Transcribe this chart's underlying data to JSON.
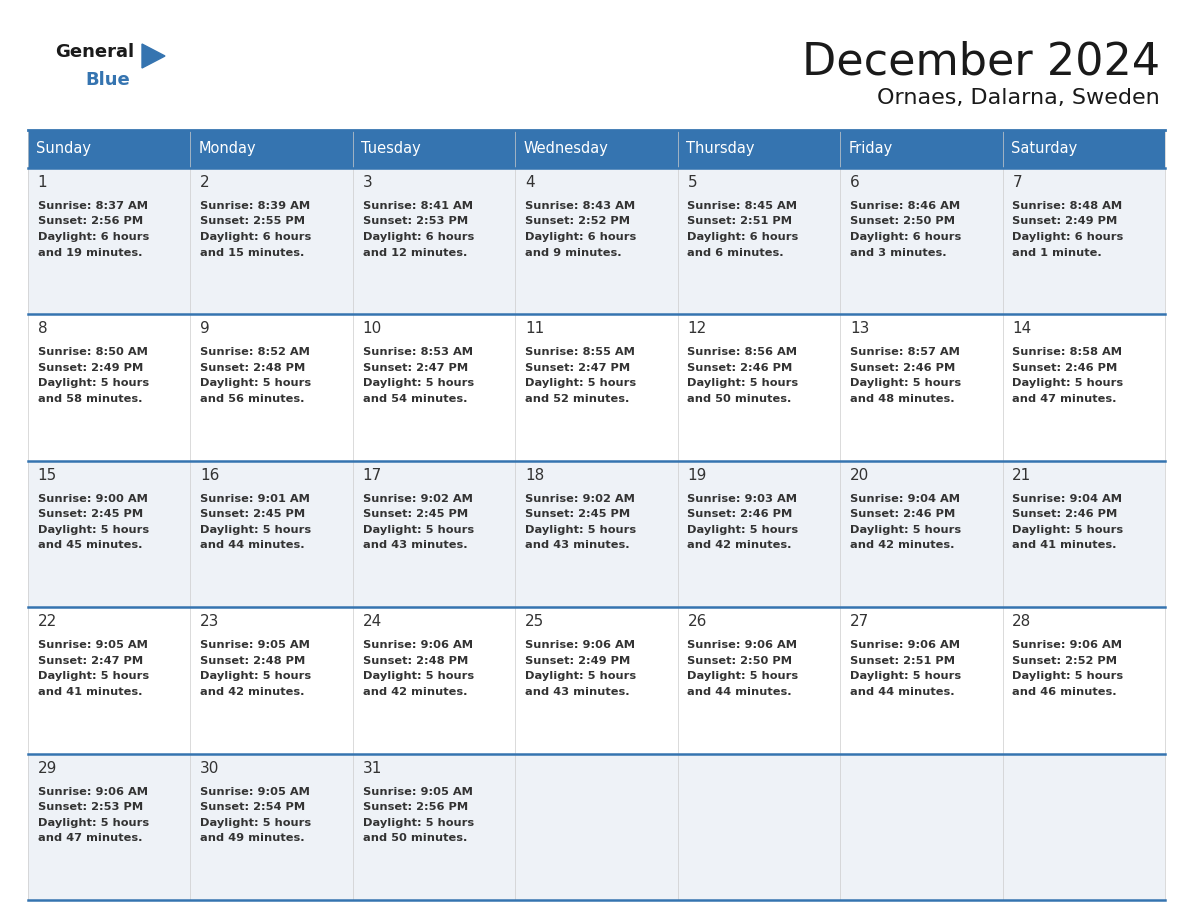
{
  "title": "December 2024",
  "subtitle": "Ornaes, Dalarna, Sweden",
  "header_bg": "#3574b0",
  "header_text": "#ffffff",
  "row_bg_odd": "#eef2f7",
  "row_bg_even": "#ffffff",
  "border_color": "#3574b0",
  "text_color": "#333333",
  "day_names": [
    "Sunday",
    "Monday",
    "Tuesday",
    "Wednesday",
    "Thursday",
    "Friday",
    "Saturday"
  ],
  "days": [
    {
      "day": 1,
      "sunrise": "8:37 AM",
      "sunset": "2:56 PM",
      "daylight_line1": "Daylight: 6 hours",
      "daylight_line2": "and 19 minutes."
    },
    {
      "day": 2,
      "sunrise": "8:39 AM",
      "sunset": "2:55 PM",
      "daylight_line1": "Daylight: 6 hours",
      "daylight_line2": "and 15 minutes."
    },
    {
      "day": 3,
      "sunrise": "8:41 AM",
      "sunset": "2:53 PM",
      "daylight_line1": "Daylight: 6 hours",
      "daylight_line2": "and 12 minutes."
    },
    {
      "day": 4,
      "sunrise": "8:43 AM",
      "sunset": "2:52 PM",
      "daylight_line1": "Daylight: 6 hours",
      "daylight_line2": "and 9 minutes."
    },
    {
      "day": 5,
      "sunrise": "8:45 AM",
      "sunset": "2:51 PM",
      "daylight_line1": "Daylight: 6 hours",
      "daylight_line2": "and 6 minutes."
    },
    {
      "day": 6,
      "sunrise": "8:46 AM",
      "sunset": "2:50 PM",
      "daylight_line1": "Daylight: 6 hours",
      "daylight_line2": "and 3 minutes."
    },
    {
      "day": 7,
      "sunrise": "8:48 AM",
      "sunset": "2:49 PM",
      "daylight_line1": "Daylight: 6 hours",
      "daylight_line2": "and 1 minute."
    },
    {
      "day": 8,
      "sunrise": "8:50 AM",
      "sunset": "2:49 PM",
      "daylight_line1": "Daylight: 5 hours",
      "daylight_line2": "and 58 minutes."
    },
    {
      "day": 9,
      "sunrise": "8:52 AM",
      "sunset": "2:48 PM",
      "daylight_line1": "Daylight: 5 hours",
      "daylight_line2": "and 56 minutes."
    },
    {
      "day": 10,
      "sunrise": "8:53 AM",
      "sunset": "2:47 PM",
      "daylight_line1": "Daylight: 5 hours",
      "daylight_line2": "and 54 minutes."
    },
    {
      "day": 11,
      "sunrise": "8:55 AM",
      "sunset": "2:47 PM",
      "daylight_line1": "Daylight: 5 hours",
      "daylight_line2": "and 52 minutes."
    },
    {
      "day": 12,
      "sunrise": "8:56 AM",
      "sunset": "2:46 PM",
      "daylight_line1": "Daylight: 5 hours",
      "daylight_line2": "and 50 minutes."
    },
    {
      "day": 13,
      "sunrise": "8:57 AM",
      "sunset": "2:46 PM",
      "daylight_line1": "Daylight: 5 hours",
      "daylight_line2": "and 48 minutes."
    },
    {
      "day": 14,
      "sunrise": "8:58 AM",
      "sunset": "2:46 PM",
      "daylight_line1": "Daylight: 5 hours",
      "daylight_line2": "and 47 minutes."
    },
    {
      "day": 15,
      "sunrise": "9:00 AM",
      "sunset": "2:45 PM",
      "daylight_line1": "Daylight: 5 hours",
      "daylight_line2": "and 45 minutes."
    },
    {
      "day": 16,
      "sunrise": "9:01 AM",
      "sunset": "2:45 PM",
      "daylight_line1": "Daylight: 5 hours",
      "daylight_line2": "and 44 minutes."
    },
    {
      "day": 17,
      "sunrise": "9:02 AM",
      "sunset": "2:45 PM",
      "daylight_line1": "Daylight: 5 hours",
      "daylight_line2": "and 43 minutes."
    },
    {
      "day": 18,
      "sunrise": "9:02 AM",
      "sunset": "2:45 PM",
      "daylight_line1": "Daylight: 5 hours",
      "daylight_line2": "and 43 minutes."
    },
    {
      "day": 19,
      "sunrise": "9:03 AM",
      "sunset": "2:46 PM",
      "daylight_line1": "Daylight: 5 hours",
      "daylight_line2": "and 42 minutes."
    },
    {
      "day": 20,
      "sunrise": "9:04 AM",
      "sunset": "2:46 PM",
      "daylight_line1": "Daylight: 5 hours",
      "daylight_line2": "and 42 minutes."
    },
    {
      "day": 21,
      "sunrise": "9:04 AM",
      "sunset": "2:46 PM",
      "daylight_line1": "Daylight: 5 hours",
      "daylight_line2": "and 41 minutes."
    },
    {
      "day": 22,
      "sunrise": "9:05 AM",
      "sunset": "2:47 PM",
      "daylight_line1": "Daylight: 5 hours",
      "daylight_line2": "and 41 minutes."
    },
    {
      "day": 23,
      "sunrise": "9:05 AM",
      "sunset": "2:48 PM",
      "daylight_line1": "Daylight: 5 hours",
      "daylight_line2": "and 42 minutes."
    },
    {
      "day": 24,
      "sunrise": "9:06 AM",
      "sunset": "2:48 PM",
      "daylight_line1": "Daylight: 5 hours",
      "daylight_line2": "and 42 minutes."
    },
    {
      "day": 25,
      "sunrise": "9:06 AM",
      "sunset": "2:49 PM",
      "daylight_line1": "Daylight: 5 hours",
      "daylight_line2": "and 43 minutes."
    },
    {
      "day": 26,
      "sunrise": "9:06 AM",
      "sunset": "2:50 PM",
      "daylight_line1": "Daylight: 5 hours",
      "daylight_line2": "and 44 minutes."
    },
    {
      "day": 27,
      "sunrise": "9:06 AM",
      "sunset": "2:51 PM",
      "daylight_line1": "Daylight: 5 hours",
      "daylight_line2": "and 44 minutes."
    },
    {
      "day": 28,
      "sunrise": "9:06 AM",
      "sunset": "2:52 PM",
      "daylight_line1": "Daylight: 5 hours",
      "daylight_line2": "and 46 minutes."
    },
    {
      "day": 29,
      "sunrise": "9:06 AM",
      "sunset": "2:53 PM",
      "daylight_line1": "Daylight: 5 hours",
      "daylight_line2": "and 47 minutes."
    },
    {
      "day": 30,
      "sunrise": "9:05 AM",
      "sunset": "2:54 PM",
      "daylight_line1": "Daylight: 5 hours",
      "daylight_line2": "and 49 minutes."
    },
    {
      "day": 31,
      "sunrise": "9:05 AM",
      "sunset": "2:56 PM",
      "daylight_line1": "Daylight: 5 hours",
      "daylight_line2": "and 50 minutes."
    }
  ]
}
